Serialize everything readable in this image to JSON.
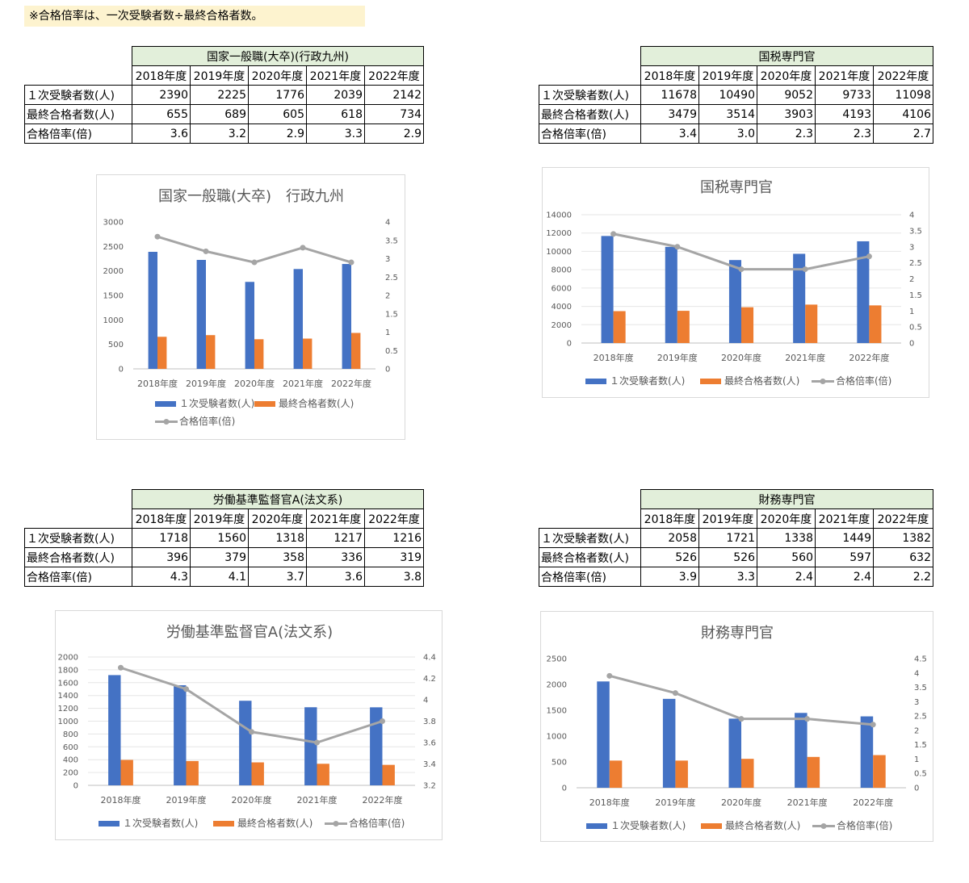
{
  "note": "※合格倍率は、一次受験者数÷最終合格者数。",
  "row_labels": [
    "１次受験者数(人)",
    "最終合格者数(人)",
    "合格倍率(倍)"
  ],
  "years": [
    "2018年度",
    "2019年度",
    "2020年度",
    "2021年度",
    "2022年度"
  ],
  "colors": {
    "blue": "#4472c4",
    "orange": "#ed7d31",
    "gray": "#a5a5a5",
    "title_bg": "#e2efda"
  },
  "tables": [
    {
      "title": "国家一般職(大卒)(行政九州)",
      "rows": [
        [
          "2390",
          "2225",
          "1776",
          "2039",
          "2142"
        ],
        [
          "655",
          "689",
          "605",
          "618",
          "734"
        ],
        [
          "3.6",
          "3.2",
          "2.9",
          "3.3",
          "2.9"
        ]
      ]
    },
    {
      "title": "国税専門官",
      "rows": [
        [
          "11678",
          "10490",
          "9052",
          "9733",
          "11098"
        ],
        [
          "3479",
          "3514",
          "3903",
          "4193",
          "4106"
        ],
        [
          "3.4",
          "3.0",
          "2.3",
          "2.3",
          "2.7"
        ]
      ]
    },
    {
      "title": "労働基準監督官A(法文系)",
      "rows": [
        [
          "1718",
          "1560",
          "1318",
          "1217",
          "1216"
        ],
        [
          "396",
          "379",
          "358",
          "336",
          "319"
        ],
        [
          "4.3",
          "4.1",
          "3.7",
          "3.6",
          "3.8"
        ]
      ]
    },
    {
      "title": "財務専門官",
      "rows": [
        [
          "2058",
          "1721",
          "1338",
          "1449",
          "1382"
        ],
        [
          "526",
          "526",
          "560",
          "597",
          "632"
        ],
        [
          "3.9",
          "3.3",
          "2.4",
          "2.4",
          "2.2"
        ]
      ]
    }
  ],
  "chart_data": [
    {
      "type": "bar",
      "title": "国家一般職(大卒)　行政九州",
      "categories": [
        "2018年度",
        "2019年度",
        "2020年度",
        "2021年度",
        "2022年度"
      ],
      "series": [
        {
          "name": "１次受験者数(人)",
          "values": [
            2390,
            2225,
            1776,
            2039,
            2142
          ],
          "axis": "left"
        },
        {
          "name": "最終合格者数(人)",
          "values": [
            655,
            689,
            605,
            618,
            734
          ],
          "axis": "left"
        },
        {
          "name": "合格倍率(倍)",
          "type": "line",
          "values": [
            3.6,
            3.2,
            2.9,
            3.3,
            2.9
          ],
          "axis": "right"
        }
      ],
      "ylim": [
        0,
        3000
      ],
      "y_ticks": [
        "0",
        "500",
        "1000",
        "1500",
        "2000",
        "2500",
        "3000"
      ],
      "y2lim": [
        0,
        4
      ],
      "y2_ticks": [
        "0",
        "0.5",
        "1",
        "1.5",
        "2",
        "2.5",
        "3",
        "3.5",
        "4"
      ],
      "legend": "bottom",
      "grid": false
    },
    {
      "type": "bar",
      "title": "国税専門官",
      "categories": [
        "2018年度",
        "2019年度",
        "2020年度",
        "2021年度",
        "2022年度"
      ],
      "series": [
        {
          "name": "１次受験者数(人)",
          "values": [
            11678,
            10490,
            9052,
            9733,
            11098
          ],
          "axis": "left"
        },
        {
          "name": "最終合格者数(人)",
          "values": [
            3479,
            3514,
            3903,
            4193,
            4106
          ],
          "axis": "left"
        },
        {
          "name": "合格倍率(倍)",
          "type": "line",
          "values": [
            3.4,
            3.0,
            2.3,
            2.3,
            2.7
          ],
          "axis": "right"
        }
      ],
      "ylim": [
        0,
        14000
      ],
      "y_ticks": [
        "0",
        "2000",
        "4000",
        "6000",
        "8000",
        "10000",
        "12000",
        "14000"
      ],
      "y2lim": [
        0,
        4
      ],
      "y2_ticks": [
        "0",
        "0.5",
        "1",
        "1.5",
        "2",
        "2.5",
        "3",
        "3.5",
        "4"
      ],
      "legend": "bottom",
      "grid": true
    },
    {
      "type": "bar",
      "title": "労働基準監督官A(法文系)",
      "categories": [
        "2018年度",
        "2019年度",
        "2020年度",
        "2021年度",
        "2022年度"
      ],
      "series": [
        {
          "name": "１次受験者数(人)",
          "values": [
            1718,
            1560,
            1318,
            1217,
            1216
          ],
          "axis": "left"
        },
        {
          "name": "最終合格者数(人)",
          "values": [
            396,
            379,
            358,
            336,
            319
          ],
          "axis": "left"
        },
        {
          "name": "合格倍率(倍)",
          "type": "line",
          "values": [
            4.3,
            4.1,
            3.7,
            3.6,
            3.8
          ],
          "axis": "right"
        }
      ],
      "ylim": [
        0,
        2000
      ],
      "y_ticks": [
        "0",
        "200",
        "400",
        "600",
        "800",
        "1000",
        "1200",
        "1400",
        "1600",
        "1800",
        "2000"
      ],
      "y2lim": [
        3.2,
        4.4
      ],
      "y2_ticks": [
        "3.2",
        "3.4",
        "3.6",
        "3.8",
        "4",
        "4.2",
        "4.4"
      ],
      "legend": "bottom",
      "grid": true
    },
    {
      "type": "bar",
      "title": "財務専門官",
      "categories": [
        "2018年度",
        "2019年度",
        "2020年度",
        "2021年度",
        "2022年度"
      ],
      "series": [
        {
          "name": "１次受験者数(人)",
          "values": [
            2058,
            1721,
            1338,
            1449,
            1382
          ],
          "axis": "left"
        },
        {
          "name": "最終合格者数(人)",
          "values": [
            526,
            526,
            560,
            597,
            632
          ],
          "axis": "left"
        },
        {
          "name": "合格倍率(倍)",
          "type": "line",
          "values": [
            3.9,
            3.3,
            2.4,
            2.4,
            2.2
          ],
          "axis": "right"
        }
      ],
      "ylim": [
        0,
        2500
      ],
      "y_ticks": [
        "0",
        "500",
        "1000",
        "1500",
        "2000",
        "2500"
      ],
      "y2lim": [
        0,
        4.5
      ],
      "y2_ticks": [
        "0",
        "0.5",
        "1",
        "1.5",
        "2",
        "2.5",
        "3",
        "3.5",
        "4",
        "4.5"
      ],
      "legend": "bottom",
      "grid": false
    }
  ]
}
